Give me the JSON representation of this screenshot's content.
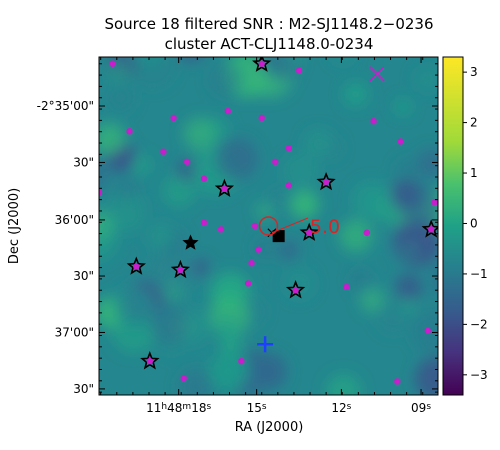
{
  "chart_data": {
    "type": "heatmap",
    "title": "Source 18 filtered SNR : M2-SJ1148.2−0236",
    "subtitle": "cluster ACT-CLJ1148.0-0234",
    "xlabel": "RA (J2000)",
    "ylabel": "Dec (J2000)",
    "x_ticks": [
      {
        "pos": 0.235,
        "h": "11",
        "m": "48",
        "s": "18",
        "unit": "s"
      },
      {
        "pos": 0.465,
        "text": "15",
        "unit": "s"
      },
      {
        "pos": 0.715,
        "text": "12",
        "unit": "s"
      },
      {
        "pos": 0.95,
        "text": "09",
        "unit": "s"
      }
    ],
    "y_ticks": [
      {
        "pos": 0.145,
        "label": "-2°35'00\""
      },
      {
        "pos": 0.312,
        "label": "30\""
      },
      {
        "pos": 0.482,
        "label": "36'00\""
      },
      {
        "pos": 0.648,
        "label": "30\""
      },
      {
        "pos": 0.815,
        "label": "37'00\""
      },
      {
        "pos": 0.982,
        "label": "30\""
      }
    ],
    "colorbar": {
      "colormap": "viridis",
      "min": -3.4,
      "max": 3.3,
      "ticks": [
        -3,
        -2,
        -1,
        0,
        1,
        2,
        3
      ]
    },
    "annotation": {
      "text": "5.0",
      "color": "#d62728",
      "x": 0.575,
      "y": 0.5
    },
    "markers": {
      "magenta_dots": [
        [
          0.04,
          0.02
        ],
        [
          0.59,
          0.04
        ],
        [
          0.38,
          0.16
        ],
        [
          0.48,
          0.18
        ],
        [
          0.22,
          0.18
        ],
        [
          0.09,
          0.22
        ],
        [
          0.81,
          0.19
        ],
        [
          0.89,
          0.25
        ],
        [
          0.19,
          0.28
        ],
        [
          0.56,
          0.27
        ],
        [
          0.26,
          0.31
        ],
        [
          0.52,
          0.31
        ],
        [
          0.31,
          0.36
        ],
        [
          0.56,
          0.38
        ],
        [
          0.99,
          0.43
        ],
        [
          0.31,
          0.49
        ],
        [
          0.36,
          0.51
        ],
        [
          0.46,
          0.5
        ],
        [
          0.47,
          0.57
        ],
        [
          0.79,
          0.52
        ],
        [
          0.45,
          0.61
        ],
        [
          0.44,
          0.67
        ],
        [
          0.73,
          0.68
        ],
        [
          0.97,
          0.81
        ],
        [
          0.42,
          0.9
        ],
        [
          0.25,
          0.95
        ],
        [
          0.88,
          0.96
        ],
        [
          0.0,
          0.4
        ]
      ],
      "stars": [
        [
          0.48,
          0.02
        ],
        [
          0.37,
          0.39
        ],
        [
          0.67,
          0.37
        ],
        [
          0.62,
          0.52
        ],
        [
          0.98,
          0.51
        ],
        [
          0.11,
          0.62
        ],
        [
          0.24,
          0.63
        ],
        [
          0.58,
          0.69
        ],
        [
          0.15,
          0.9
        ]
      ],
      "filled_star": [
        0.27,
        0.55
      ],
      "magenta_x": [
        0.82,
        0.05
      ],
      "blue_plus": [
        0.49,
        0.85
      ],
      "square": [
        0.53,
        0.53
      ],
      "small_x": [
        0.51,
        0.52
      ],
      "circle": [
        0.5,
        0.5
      ]
    }
  }
}
